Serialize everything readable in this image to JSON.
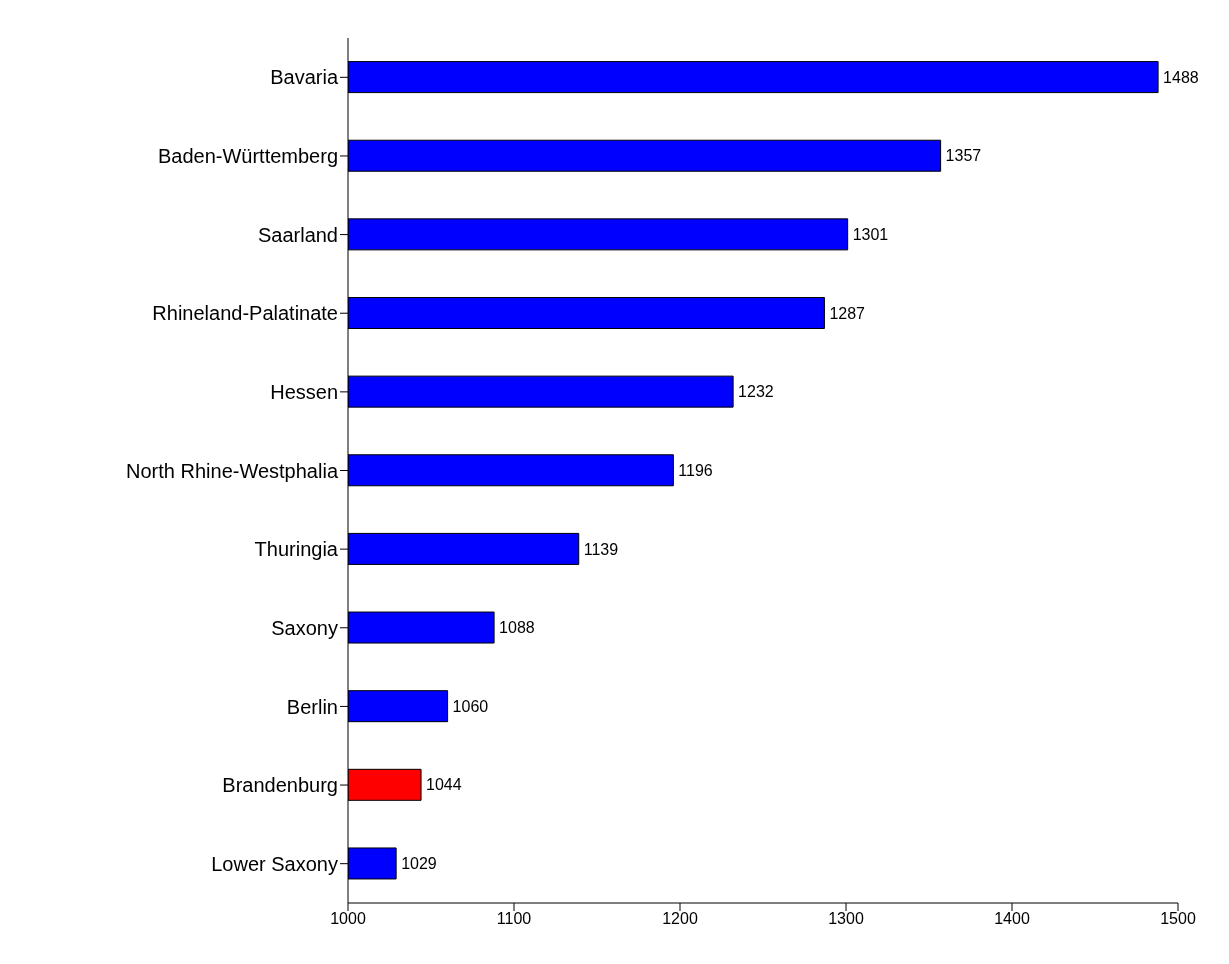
{
  "chart_data": {
    "type": "bar",
    "orientation": "horizontal",
    "categories": [
      "Bavaria",
      "Baden-Württemberg",
      "Saarland",
      "Rhineland-Palatinate",
      "Hessen",
      "North Rhine-Westphalia",
      "Thuringia",
      "Saxony",
      "Berlin",
      "Brandenburg",
      "Lower Saxony"
    ],
    "values": [
      1488,
      1357,
      1301,
      1287,
      1232,
      1196,
      1139,
      1088,
      1060,
      1044,
      1029
    ],
    "colors": [
      "#0000ff",
      "#0000ff",
      "#0000ff",
      "#0000ff",
      "#0000ff",
      "#0000ff",
      "#0000ff",
      "#0000ff",
      "#0000ff",
      "#ff0000",
      "#0000ff"
    ],
    "xlim": [
      1000,
      1500
    ],
    "xticks": [
      1000,
      1100,
      1200,
      1300,
      1400,
      1500
    ],
    "data_labels": true,
    "grid": false
  }
}
